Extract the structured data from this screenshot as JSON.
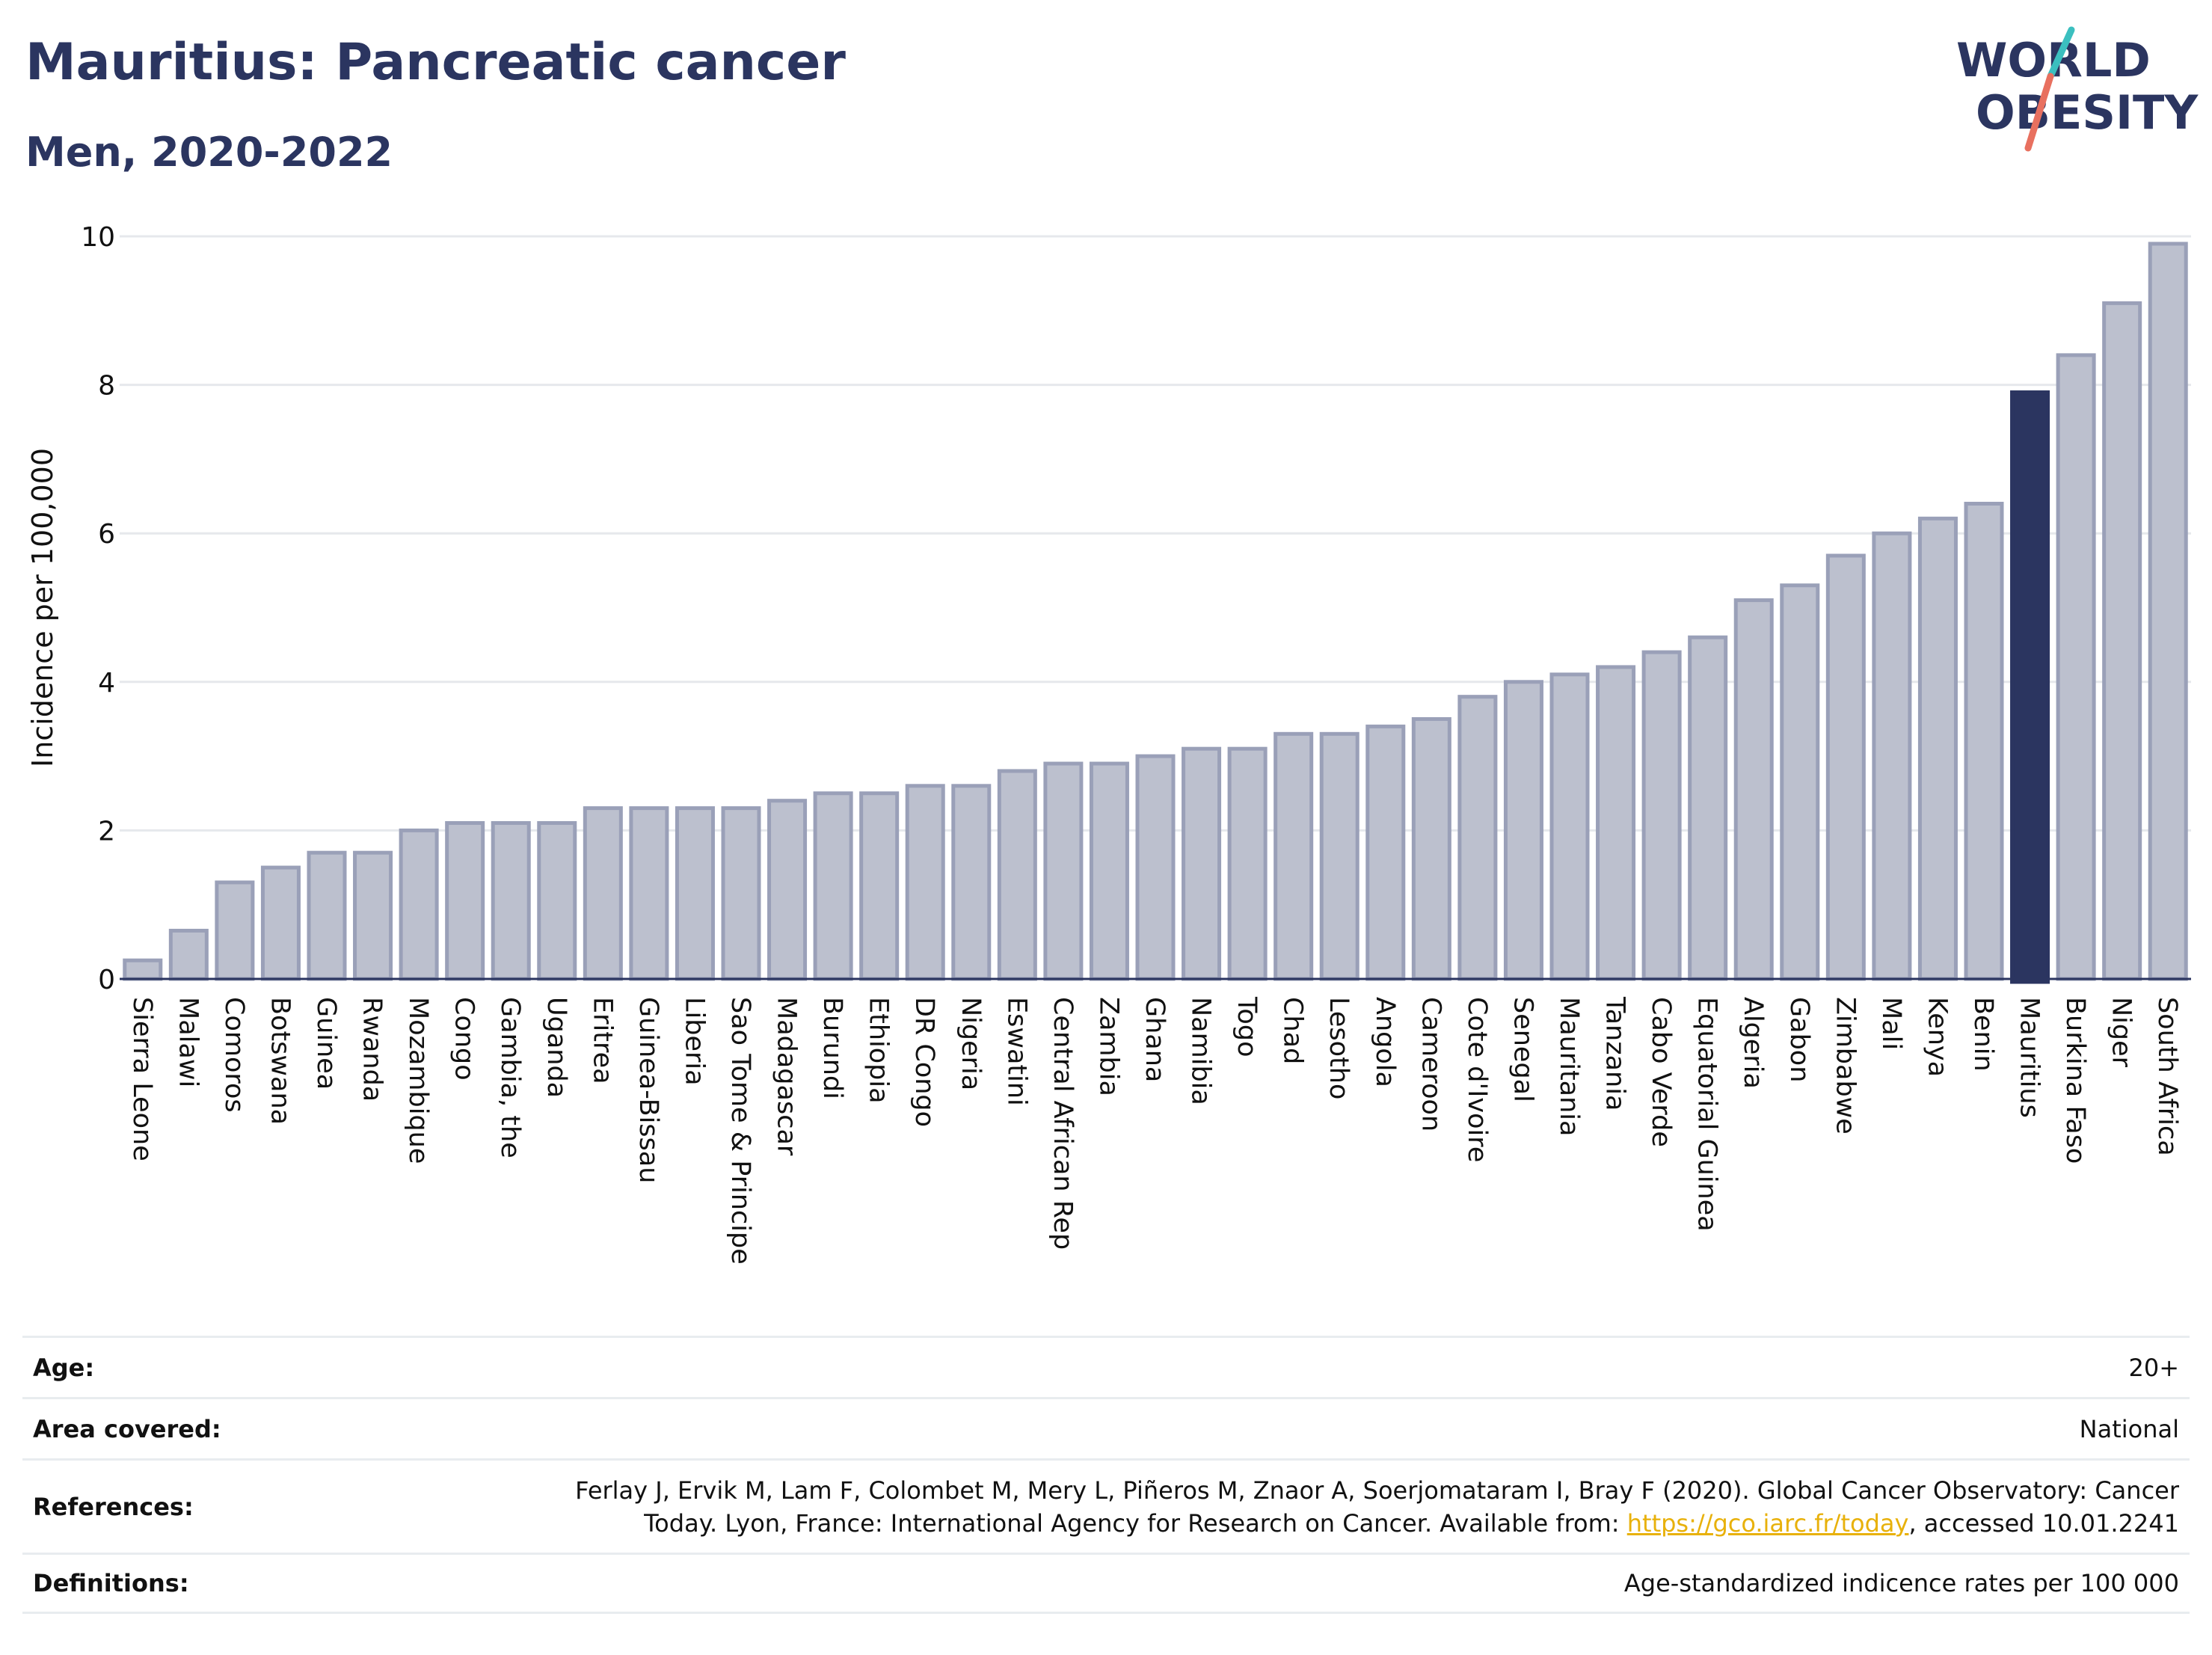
{
  "header": {
    "title": "Mauritius: Pancreatic cancer",
    "subtitle": "Men, 2020-2022"
  },
  "logo": {
    "line1": "WORLD",
    "line2": "OBESITY"
  },
  "colors": {
    "bar": "#bcc0ce",
    "bar_stroke": "#9aa0b8",
    "highlight": "#2b3560",
    "grid": "#e6e8ec",
    "text": "#2b3560",
    "logo_teal": "#3bbfbf",
    "logo_coral": "#e8705f",
    "link": "#e8b10b"
  },
  "chart_data": {
    "type": "bar",
    "title": "Mauritius: Pancreatic cancer",
    "subtitle": "Men, 2020-2022",
    "xlabel": "",
    "ylabel": "Incidence per 100,000",
    "ylim": [
      0,
      10
    ],
    "yticks": [
      0,
      2,
      4,
      6,
      8,
      10
    ],
    "grid": true,
    "highlight": "Mauritius",
    "categories": [
      "Sierra Leone",
      "Malawi",
      "Comoros",
      "Botswana",
      "Guinea",
      "Rwanda",
      "Mozambique",
      "Congo",
      "Gambia, the",
      "Uganda",
      "Eritrea",
      "Guinea-Bissau",
      "Liberia",
      "Sao Tome & Principe",
      "Madagascar",
      "Burundi",
      "Ethiopia",
      "DR Congo",
      "Nigeria",
      "Eswatini",
      "Central African Rep",
      "Zambia",
      "Ghana",
      "Namibia",
      "Togo",
      "Chad",
      "Lesotho",
      "Angola",
      "Cameroon",
      "Cote d'Ivoire",
      "Senegal",
      "Mauritania",
      "Tanzania",
      "Cabo Verde",
      "Equatorial Guinea",
      "Algeria",
      "Gabon",
      "Zimbabwe",
      "Mali",
      "Kenya",
      "Benin",
      "Mauritius",
      "Burkina Faso",
      "Niger",
      "South Africa"
    ],
    "values": [
      0.25,
      0.65,
      1.3,
      1.5,
      1.7,
      1.7,
      2.0,
      2.1,
      2.1,
      2.1,
      2.3,
      2.3,
      2.3,
      2.3,
      2.4,
      2.5,
      2.5,
      2.6,
      2.6,
      2.8,
      2.9,
      2.9,
      3.0,
      3.1,
      3.1,
      3.3,
      3.3,
      3.4,
      3.5,
      3.8,
      4.0,
      4.1,
      4.2,
      4.4,
      4.6,
      5.1,
      5.3,
      5.7,
      6.0,
      6.2,
      6.4,
      7.9,
      8.4,
      9.1,
      9.9
    ]
  },
  "info": {
    "age_label": "Age:",
    "age_value": "20+",
    "area_label": "Area covered:",
    "area_value": "National",
    "references_label": "References:",
    "references_line1": "Ferlay J, Ervik M, Lam F, Colombet M, Mery L, Piñeros M, Znaor A, Soerjomataram I, Bray F (2020). Global Cancer Observatory: Cancer",
    "references_line2_pre": "Today. Lyon, France: International Agency for Research on Cancer. Available from: ",
    "references_link": "https://gco.iarc.fr/today",
    "references_line2_post": ", accessed 10.01.2241",
    "definitions_label": "Definitions:",
    "definitions_value": "Age-standardized indicence rates per 100 000"
  }
}
